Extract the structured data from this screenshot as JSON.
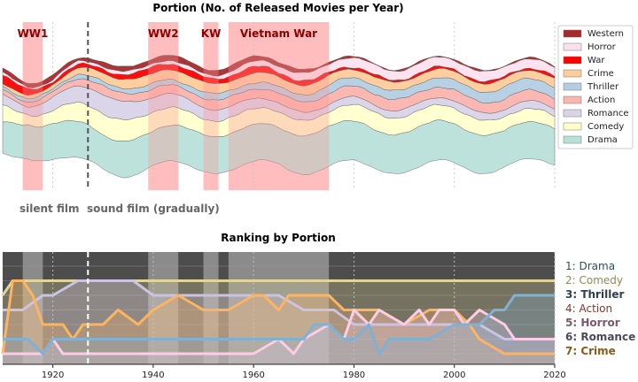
{
  "titles": {
    "top": "Portion (No. of Released Movies per Year)",
    "bottom": "Ranking by Portion"
  },
  "periods": [
    {
      "label": "WW1",
      "start": 1914,
      "end": 1918
    },
    {
      "label": "WW2",
      "start": 1939,
      "end": 1945
    },
    {
      "label": "KW",
      "start": 1950,
      "end": 1953
    },
    {
      "label": "Vietnam War",
      "start": 1955,
      "end": 1975
    }
  ],
  "sound_film_year": 1927,
  "film_labels": {
    "silent": "silent film",
    "sound": "sound film (gradually)"
  },
  "colors": {
    "Drama": "#b8e0d9",
    "Comedy": "#ffffcc",
    "Romance": "#d9d3e8",
    "Action": "#fbb4ae",
    "Thriller": "#b3cde3",
    "Crime": "#fdcc9a",
    "War": "#ff0000",
    "Horror": "#fde0ef",
    "Western": "#a6292b",
    "period": "#ff9999",
    "rank_bg": "#4d4d4d"
  },
  "chart_data": [
    {
      "type": "area",
      "title": "Portion (No. of Released Movies per Year)",
      "x_range": [
        1910,
        2020
      ],
      "stacking": "stream",
      "legend_position": "right",
      "series_order_bottom_to_top": [
        "Drama",
        "Comedy",
        "Romance",
        "Action",
        "Thriller",
        "Crime",
        "War",
        "Horror",
        "Western"
      ],
      "keyframes": [
        {
          "year": 1910,
          "Drama": 30,
          "Comedy": 15,
          "Romance": 10,
          "Action": 5,
          "Thriller": 3,
          "Crime": 3,
          "War": 8,
          "Horror": 2,
          "Western": 4
        },
        {
          "year": 1915,
          "Drama": 32,
          "Comedy": 10,
          "Romance": 8,
          "Action": 4,
          "Thriller": 3,
          "Crime": 3,
          "War": 6,
          "Horror": 2,
          "Western": 4
        },
        {
          "year": 1920,
          "Drama": 34,
          "Comedy": 12,
          "Romance": 12,
          "Action": 5,
          "Thriller": 3,
          "Crime": 4,
          "War": 3,
          "Horror": 2,
          "Western": 4
        },
        {
          "year": 1925,
          "Drama": 34,
          "Comedy": 18,
          "Romance": 16,
          "Action": 7,
          "Thriller": 4,
          "Crime": 6,
          "War": 3,
          "Horror": 3,
          "Western": 3
        },
        {
          "year": 1930,
          "Drama": 32,
          "Comedy": 20,
          "Romance": 18,
          "Action": 8,
          "Thriller": 4,
          "Crime": 8,
          "War": 4,
          "Horror": 3,
          "Western": 4
        },
        {
          "year": 1935,
          "Drama": 34,
          "Comedy": 20,
          "Romance": 17,
          "Action": 8,
          "Thriller": 5,
          "Crime": 9,
          "War": 4,
          "Horror": 3,
          "Western": 4
        },
        {
          "year": 1940,
          "Drama": 33,
          "Comedy": 18,
          "Romance": 14,
          "Action": 8,
          "Thriller": 5,
          "Crime": 9,
          "War": 7,
          "Horror": 3,
          "Western": 5
        },
        {
          "year": 1945,
          "Drama": 34,
          "Comedy": 16,
          "Romance": 12,
          "Action": 8,
          "Thriller": 5,
          "Crime": 10,
          "War": 5,
          "Horror": 3,
          "Western": 5
        },
        {
          "year": 1950,
          "Drama": 35,
          "Comedy": 15,
          "Romance": 11,
          "Action": 9,
          "Thriller": 6,
          "Crime": 9,
          "War": 5,
          "Horror": 3,
          "Western": 5
        },
        {
          "year": 1955,
          "Drama": 35,
          "Comedy": 15,
          "Romance": 10,
          "Action": 9,
          "Thriller": 6,
          "Crime": 9,
          "War": 5,
          "Horror": 4,
          "Western": 5
        },
        {
          "year": 1960,
          "Drama": 34,
          "Comedy": 15,
          "Romance": 10,
          "Action": 9,
          "Thriller": 6,
          "Crime": 9,
          "War": 6,
          "Horror": 5,
          "Western": 5
        },
        {
          "year": 1965,
          "Drama": 35,
          "Comedy": 15,
          "Romance": 8,
          "Action": 9,
          "Thriller": 6,
          "Crime": 9,
          "War": 5,
          "Horror": 6,
          "Western": 4
        },
        {
          "year": 1970,
          "Drama": 36,
          "Comedy": 14,
          "Romance": 8,
          "Action": 10,
          "Thriller": 7,
          "Crime": 9,
          "War": 4,
          "Horror": 7,
          "Western": 3
        },
        {
          "year": 1975,
          "Drama": 38,
          "Comedy": 14,
          "Romance": 7,
          "Action": 10,
          "Thriller": 8,
          "Crime": 9,
          "War": 3,
          "Horror": 8,
          "Western": 2
        },
        {
          "year": 1980,
          "Drama": 37,
          "Comedy": 15,
          "Romance": 7,
          "Action": 10,
          "Thriller": 8,
          "Crime": 8,
          "War": 2,
          "Horror": 9,
          "Western": 1
        },
        {
          "year": 1985,
          "Drama": 36,
          "Comedy": 17,
          "Romance": 7,
          "Action": 11,
          "Thriller": 8,
          "Crime": 8,
          "War": 2,
          "Horror": 9,
          "Western": 1
        },
        {
          "year": 1990,
          "Drama": 38,
          "Comedy": 15,
          "Romance": 7,
          "Action": 10,
          "Thriller": 8,
          "Crime": 8,
          "War": 2,
          "Horror": 9,
          "Western": 1
        },
        {
          "year": 1995,
          "Drama": 37,
          "Comedy": 15,
          "Romance": 7,
          "Action": 10,
          "Thriller": 9,
          "Crime": 8,
          "War": 2,
          "Horror": 9,
          "Western": 1
        },
        {
          "year": 2000,
          "Drama": 37,
          "Comedy": 15,
          "Romance": 7,
          "Action": 10,
          "Thriller": 9,
          "Crime": 8,
          "War": 2,
          "Horror": 9,
          "Western": 1
        },
        {
          "year": 2005,
          "Drama": 36,
          "Comedy": 14,
          "Romance": 7,
          "Action": 10,
          "Thriller": 10,
          "Crime": 8,
          "War": 2,
          "Horror": 9,
          "Western": 1
        },
        {
          "year": 2010,
          "Drama": 35,
          "Comedy": 13,
          "Romance": 7,
          "Action": 10,
          "Thriller": 11,
          "Crime": 8,
          "War": 2,
          "Horror": 9,
          "Western": 1
        },
        {
          "year": 2015,
          "Drama": 35,
          "Comedy": 12,
          "Romance": 7,
          "Action": 10,
          "Thriller": 11,
          "Crime": 8,
          "War": 2,
          "Horror": 9,
          "Western": 1
        },
        {
          "year": 2020,
          "Drama": 34,
          "Comedy": 12,
          "Romance": 7,
          "Action": 10,
          "Thriller": 11,
          "Crime": 8,
          "War": 2,
          "Horror": 8,
          "Western": 1
        }
      ],
      "legend": [
        "Western",
        "Horror",
        "War",
        "Crime",
        "Thriller",
        "Action",
        "Romance",
        "Comedy",
        "Drama"
      ]
    },
    {
      "type": "line",
      "title": "Ranking by Portion",
      "x_range": [
        1910,
        2020
      ],
      "x_ticks": [
        1920,
        1940,
        1960,
        1980,
        2000,
        2020
      ],
      "rank_range": [
        1,
        7
      ],
      "series": [
        {
          "name": "Comedy",
          "points": [
            [
              1910,
              3
            ],
            [
              1912,
              2
            ],
            [
              1915,
              2
            ],
            [
              1920,
              2
            ],
            [
              1930,
              2
            ],
            [
              2020,
              2
            ]
          ]
        },
        {
          "name": "Romance",
          "points": [
            [
              1910,
              4
            ],
            [
              1914,
              4
            ],
            [
              1918,
              3
            ],
            [
              1920,
              3
            ],
            [
              1925,
              2
            ],
            [
              1936,
              2
            ],
            [
              1940,
              3
            ],
            [
              1960,
              3
            ],
            [
              1965,
              3
            ],
            [
              1970,
              4
            ],
            [
              1976,
              4
            ],
            [
              1980,
              5
            ],
            [
              1985,
              5
            ],
            [
              1990,
              5
            ],
            [
              2000,
              5
            ],
            [
              2005,
              5
            ],
            [
              2010,
              6
            ],
            [
              2020,
              6
            ]
          ]
        },
        {
          "name": "Crime",
          "points": [
            [
              1910,
              7
            ],
            [
              1912,
              2
            ],
            [
              1914,
              2
            ],
            [
              1916,
              3
            ],
            [
              1918,
              5
            ],
            [
              1920,
              5
            ],
            [
              1922,
              5
            ],
            [
              1924,
              6
            ],
            [
              1926,
              5
            ],
            [
              1930,
              5
            ],
            [
              1933,
              4
            ],
            [
              1937,
              5
            ],
            [
              1940,
              4
            ],
            [
              1945,
              3
            ],
            [
              1950,
              4
            ],
            [
              1955,
              4
            ],
            [
              1960,
              3
            ],
            [
              1962,
              3
            ],
            [
              1965,
              4
            ],
            [
              1967,
              3
            ],
            [
              1975,
              3
            ],
            [
              1978,
              4
            ],
            [
              1985,
              4
            ],
            [
              1990,
              5
            ],
            [
              1995,
              4
            ],
            [
              2000,
              4
            ],
            [
              2003,
              5
            ],
            [
              2005,
              6
            ],
            [
              2010,
              7
            ],
            [
              2020,
              7
            ]
          ]
        },
        {
          "name": "Horror",
          "points": [
            [
              1910,
              7
            ],
            [
              1918,
              7
            ],
            [
              1920,
              6
            ],
            [
              1922,
              7
            ],
            [
              1960,
              7
            ],
            [
              1965,
              6
            ],
            [
              1968,
              7
            ],
            [
              1970,
              6
            ],
            [
              1975,
              5
            ],
            [
              1978,
              6
            ],
            [
              1980,
              4
            ],
            [
              1983,
              5
            ],
            [
              1985,
              4
            ],
            [
              1990,
              5
            ],
            [
              1993,
              4
            ],
            [
              1995,
              5
            ],
            [
              1997,
              4
            ],
            [
              2000,
              4
            ],
            [
              2002,
              5
            ],
            [
              2005,
              4
            ],
            [
              2010,
              5
            ],
            [
              2012,
              6
            ],
            [
              2020,
              6
            ]
          ]
        },
        {
          "name": "Thriller",
          "points": [
            [
              1910,
              6
            ],
            [
              1915,
              6
            ],
            [
              1918,
              7
            ],
            [
              1920,
              6
            ],
            [
              1970,
              6
            ],
            [
              1972,
              5
            ],
            [
              1975,
              5
            ],
            [
              1978,
              6
            ],
            [
              1980,
              6
            ],
            [
              1983,
              5
            ],
            [
              1985,
              7
            ],
            [
              1987,
              6
            ],
            [
              1990,
              6
            ],
            [
              1995,
              6
            ],
            [
              2000,
              5
            ],
            [
              2005,
              5
            ],
            [
              2008,
              4
            ],
            [
              2010,
              4
            ],
            [
              2012,
              3
            ],
            [
              2020,
              3
            ]
          ]
        }
      ],
      "legend": [
        "1: Drama",
        "2: Comedy",
        "3: Thriller",
        "4: Action",
        "5: Horror",
        "6: Romance",
        "7: Crime"
      ]
    }
  ]
}
